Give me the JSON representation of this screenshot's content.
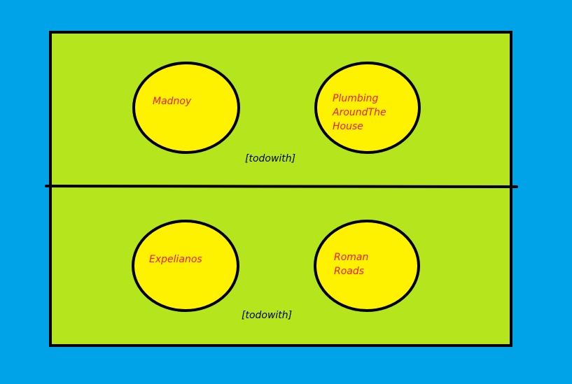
{
  "colors": {
    "background": "#00a2e8",
    "panel": "#b5e61d",
    "node_fill": "#fff200",
    "outline": "#000000",
    "node_text": "#ed1c24",
    "relation_text": "#000000"
  },
  "top_panel": {
    "node_left": {
      "lines": [
        "Madnoy"
      ]
    },
    "node_right": {
      "lines": [
        "Plumbing",
        "AroundThe",
        "House"
      ]
    },
    "relation": "[todowith]"
  },
  "bottom_panel": {
    "node_left": {
      "lines": [
        "Expelianos"
      ]
    },
    "node_right": {
      "lines": [
        "Roman",
        "Roads"
      ]
    },
    "relation": "[todowith]"
  }
}
